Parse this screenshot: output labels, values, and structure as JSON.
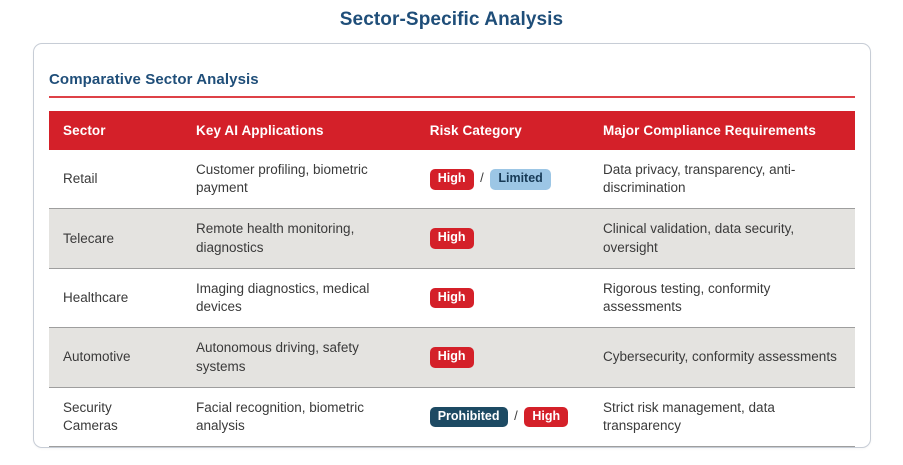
{
  "page": {
    "title": "Sector-Specific Analysis"
  },
  "card": {
    "heading": "Comparative Sector Analysis"
  },
  "table": {
    "columns": [
      "Sector",
      "Key AI Applications",
      "Risk Category",
      "Major Compliance Requirements"
    ],
    "risk_separator": "/",
    "rows": [
      {
        "sector": "Retail",
        "applications": "Customer profiling, biometric payment",
        "risks": [
          {
            "label": "High",
            "type": "high"
          },
          {
            "label": "Limited",
            "type": "limited"
          }
        ],
        "compliance": "Data privacy, transparency, anti-discrimination"
      },
      {
        "sector": "Telecare",
        "applications": "Remote health monitoring, diagnostics",
        "risks": [
          {
            "label": "High",
            "type": "high"
          }
        ],
        "compliance": "Clinical validation, data security, oversight"
      },
      {
        "sector": "Healthcare",
        "applications": "Imaging diagnostics, medical devices",
        "risks": [
          {
            "label": "High",
            "type": "high"
          }
        ],
        "compliance": "Rigorous testing, conformity assessments"
      },
      {
        "sector": "Automotive",
        "applications": "Autonomous driving, safety systems",
        "risks": [
          {
            "label": "High",
            "type": "high"
          }
        ],
        "compliance": "Cybersecurity, conformity assessments"
      },
      {
        "sector": "Security Cameras",
        "applications": "Facial recognition, biometric analysis",
        "risks": [
          {
            "label": "Prohibited",
            "type": "prohibited"
          },
          {
            "label": "High",
            "type": "high"
          }
        ],
        "compliance": "Strict risk management, data transparency"
      }
    ]
  },
  "colors": {
    "accent_red": "#d42029",
    "heading_navy": "#1f4e79",
    "badge_high_bg": "#d42029",
    "badge_limited_bg": "#9cc6e5",
    "badge_limited_text": "#173a56",
    "badge_prohibited_bg": "#1d4a63",
    "alt_row_bg": "#e4e3e0",
    "row_border": "#9e9e9e"
  }
}
